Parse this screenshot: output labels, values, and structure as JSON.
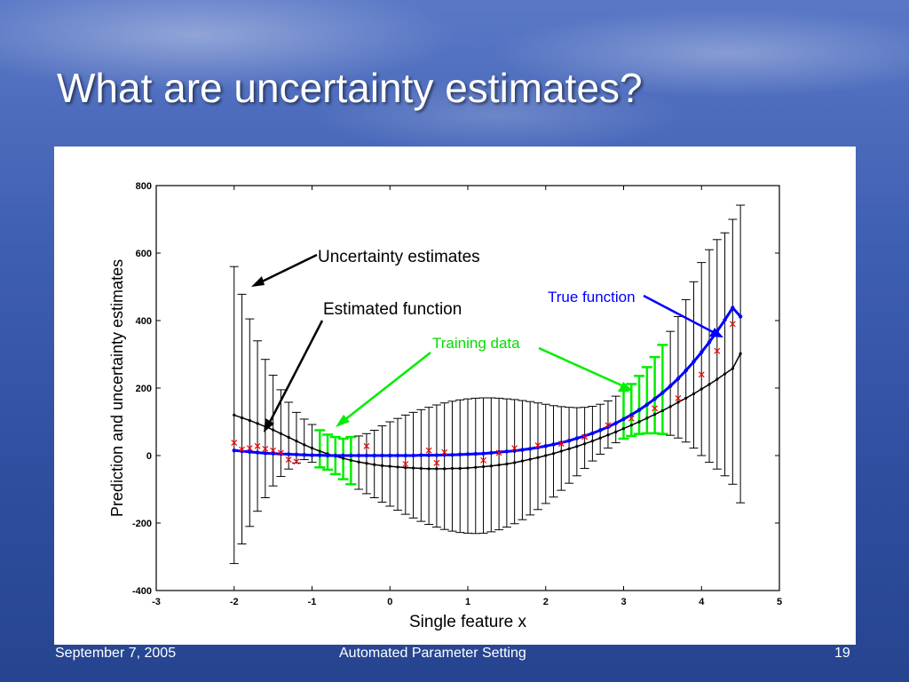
{
  "slide": {
    "title": "What are uncertainty estimates?",
    "footer": {
      "date": "September 7, 2005",
      "center": "Automated Parameter Setting",
      "page": "19"
    }
  },
  "chart_data": {
    "type": "line",
    "xlabel": "Single feature x",
    "ylabel": "Prediction and uncertainty estimates",
    "xlim": [
      -3,
      5
    ],
    "ylim": [
      -400,
      800
    ],
    "xticks": [
      -3,
      -2,
      -1,
      0,
      1,
      2,
      3,
      4,
      5
    ],
    "yticks": [
      -400,
      -200,
      0,
      200,
      400,
      600,
      800
    ],
    "x": [
      -2,
      -1.9,
      -1.8,
      -1.7,
      -1.6,
      -1.5,
      -1.4,
      -1.3,
      -1.2,
      -1.1,
      -1.0,
      -0.9,
      -0.8,
      -0.7,
      -0.6,
      -0.5,
      -0.4,
      -0.3,
      -0.2,
      -0.1,
      0,
      0.1,
      0.2,
      0.3,
      0.4,
      0.5,
      0.6,
      0.7,
      0.8,
      0.9,
      1.0,
      1.1,
      1.2,
      1.3,
      1.4,
      1.5,
      1.6,
      1.7,
      1.8,
      1.9,
      2.0,
      2.1,
      2.2,
      2.3,
      2.4,
      2.5,
      2.6,
      2.7,
      2.8,
      2.9,
      3.0,
      3.1,
      3.2,
      3.3,
      3.4,
      3.5,
      3.6,
      3.7,
      3.8,
      3.9,
      4.0,
      4.1,
      4.2,
      4.3,
      4.4,
      4.5
    ],
    "series": [
      {
        "name": "Estimated function",
        "color": "#000000",
        "values": [
          120,
          112,
          104,
          95,
          86,
          76,
          65,
          54,
          43,
          32,
          22,
          13,
          5,
          -2,
          -8,
          -14,
          -19,
          -23,
          -27,
          -30,
          -32,
          -34,
          -36,
          -37,
          -38,
          -39,
          -39,
          -39,
          -38,
          -38,
          -37,
          -35,
          -33,
          -31,
          -28,
          -25,
          -21,
          -16,
          -11,
          -6,
          0,
          6,
          13,
          20,
          27,
          35,
          43,
          52,
          61,
          70,
          80,
          90,
          100,
          111,
          122,
          133,
          145,
          158,
          170,
          183,
          197,
          211,
          226,
          242,
          258,
          302
        ]
      },
      {
        "name": "True function",
        "color": "#0000ff",
        "values": [
          15,
          13,
          11,
          9,
          7,
          6,
          5,
          4,
          3,
          2,
          1,
          1,
          0,
          0,
          0,
          0,
          0,
          0,
          0,
          0,
          0,
          0,
          0,
          0,
          1,
          1,
          1,
          2,
          2,
          3,
          4,
          5,
          6,
          8,
          10,
          12,
          14,
          17,
          20,
          24,
          28,
          33,
          38,
          44,
          51,
          58,
          66,
          75,
          85,
          96,
          108,
          121,
          135,
          151,
          168,
          186,
          206,
          228,
          252,
          278,
          306,
          336,
          368,
          402,
          438,
          412
        ]
      }
    ],
    "uncertainty": {
      "lower": [
        -320,
        -262,
        -210,
        -165,
        -125,
        -90,
        -62,
        -40,
        -22,
        -12,
        -20,
        -35,
        -42,
        -55,
        -70,
        -85,
        -100,
        -113,
        -125,
        -138,
        -150,
        -162,
        -174,
        -185,
        -195,
        -204,
        -212,
        -219,
        -224,
        -228,
        -230,
        -231,
        -230,
        -226,
        -220,
        -212,
        -202,
        -190,
        -176,
        -160,
        -142,
        -123,
        -103,
        -82,
        -60,
        -38,
        -16,
        4,
        22,
        38,
        50,
        58,
        64,
        66,
        66,
        64,
        60,
        52,
        40,
        22,
        0,
        -20,
        -40,
        -60,
        -85,
        -140
      ],
      "upper": [
        560,
        478,
        405,
        340,
        285,
        238,
        195,
        158,
        128,
        108,
        92,
        75,
        62,
        55,
        50,
        55,
        58,
        65,
        75,
        88,
        100,
        110,
        120,
        128,
        136,
        143,
        150,
        156,
        161,
        165,
        168,
        170,
        171,
        171,
        170,
        168,
        166,
        163,
        160,
        156,
        152,
        148,
        145,
        143,
        142,
        143,
        146,
        152,
        162,
        176,
        192,
        212,
        236,
        262,
        292,
        328,
        368,
        412,
        462,
        515,
        572,
        610,
        640,
        660,
        700,
        742
      ]
    },
    "training_data": {
      "x": [
        -2.0,
        -1.9,
        -1.8,
        -1.7,
        -1.6,
        -1.5,
        -1.4,
        -1.3,
        -1.2,
        -0.3,
        0.2,
        0.5,
        0.6,
        0.7,
        1.2,
        1.4,
        1.6,
        1.9,
        2.2,
        2.5,
        2.8,
        3.1,
        3.4,
        3.7,
        4.0,
        4.2,
        4.4
      ],
      "y": [
        38,
        18,
        22,
        28,
        20,
        15,
        8,
        -12,
        -18,
        28,
        -25,
        15,
        -22,
        10,
        -14,
        8,
        22,
        30,
        35,
        55,
        90,
        110,
        140,
        170,
        240,
        310,
        390
      ]
    },
    "highlighted_bars_x": [
      -0.9,
      -0.8,
      -0.7,
      -0.6,
      -0.5,
      3.0,
      3.1,
      3.2,
      3.3,
      3.4,
      3.5
    ],
    "annotations": [
      {
        "text": "Uncertainty estimates",
        "color": "#000000"
      },
      {
        "text": "Estimated function",
        "color": "#000000"
      },
      {
        "text": "Training data",
        "color": "#00dd00"
      },
      {
        "text": "True function",
        "color": "#0000ff"
      }
    ]
  }
}
